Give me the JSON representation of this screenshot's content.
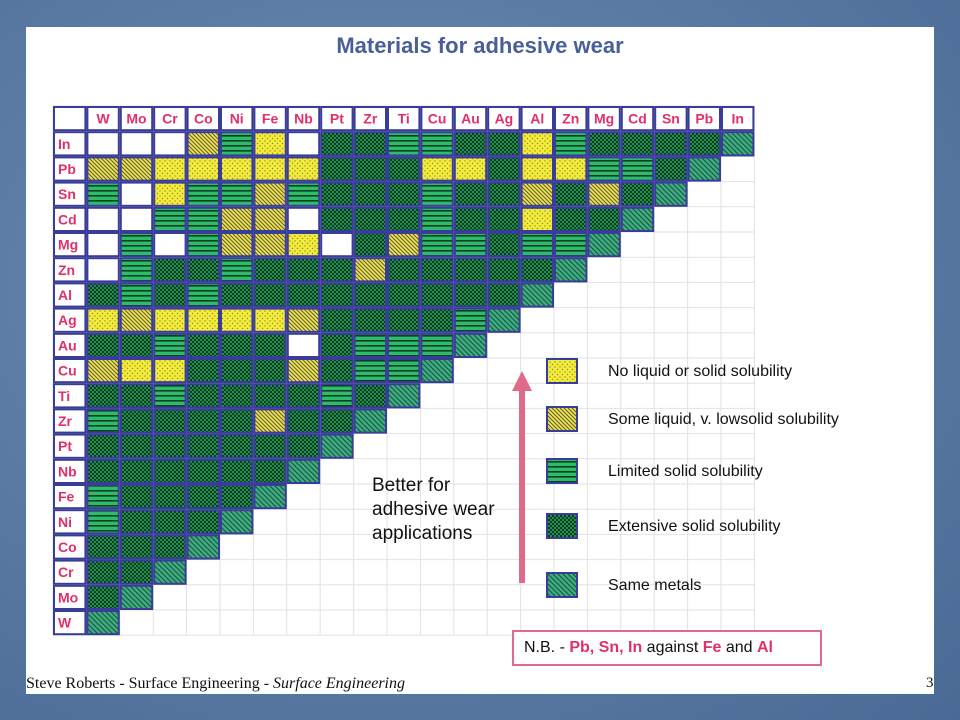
{
  "title": "Materials for adhesive wear",
  "metals": [
    "W",
    "Mo",
    "Cr",
    "Co",
    "Ni",
    "Fe",
    "Nb",
    "Pt",
    "Zr",
    "Ti",
    "Cu",
    "Au",
    "Ag",
    "Al",
    "Zn",
    "Mg",
    "Cd",
    "Sn",
    "Pb",
    "In"
  ],
  "colors": {
    "label": "#e0306a",
    "title": "#4a5f9a",
    "yellow": "#f4ec3c",
    "green": "#1fa25c",
    "dark_green": "#0f5a34",
    "teal": "#3fae82",
    "border": "#3a3c9a",
    "arrow": "#e06a8a"
  },
  "legend": [
    {
      "type": "N",
      "label": "No liquid or solid solubility"
    },
    {
      "type": "S",
      "label": "Some liquid, v. lowsolid solubility"
    },
    {
      "type": "L",
      "label": "Limited solid solubility"
    },
    {
      "type": "E",
      "label": "Extensive solid solubility"
    },
    {
      "type": "M",
      "label": "Same metals"
    }
  ],
  "chart_data": {
    "type": "heatmap",
    "codes": {
      "N": "No liquid or solid solubility",
      "S": "Some liquid, v. lowsolid solubility",
      "L": "Limited solid solubility",
      "E": "Extensive solid solubility",
      "M": "Same metals",
      "B": "blank"
    },
    "columns": [
      "W",
      "Mo",
      "Cr",
      "Co",
      "Ni",
      "Fe",
      "Nb",
      "Pt",
      "Zr",
      "Ti",
      "Cu",
      "Au",
      "Ag",
      "Al",
      "Zn",
      "Mg",
      "Cd",
      "Sn",
      "Pb",
      "In"
    ],
    "rows": [
      {
        "metal": "In",
        "cells": [
          "B",
          "B",
          "B",
          "S",
          "L",
          "N",
          "B",
          "E",
          "E",
          "L",
          "L",
          "E",
          "E",
          "N",
          "L",
          "E",
          "E",
          "E",
          "E",
          "M"
        ]
      },
      {
        "metal": "Pb",
        "cells": [
          "S",
          "S",
          "N",
          "N",
          "N",
          "N",
          "N",
          "E",
          "E",
          "E",
          "N",
          "N",
          "E",
          "N",
          "N",
          "L",
          "L",
          "E",
          "M"
        ]
      },
      {
        "metal": "Sn",
        "cells": [
          "L",
          "B",
          "N",
          "L",
          "L",
          "S",
          "L",
          "E",
          "E",
          "E",
          "L",
          "E",
          "E",
          "S",
          "E",
          "S",
          "E",
          "M"
        ]
      },
      {
        "metal": "Cd",
        "cells": [
          "B",
          "B",
          "L",
          "L",
          "S",
          "S",
          "B",
          "E",
          "E",
          "E",
          "L",
          "E",
          "E",
          "N",
          "E",
          "E",
          "M"
        ]
      },
      {
        "metal": "Mg",
        "cells": [
          "B",
          "L",
          "B",
          "L",
          "S",
          "S",
          "N",
          "B",
          "E",
          "S",
          "L",
          "L",
          "E",
          "L",
          "L",
          "M"
        ]
      },
      {
        "metal": "Zn",
        "cells": [
          "B",
          "L",
          "E",
          "E",
          "L",
          "E",
          "E",
          "E",
          "S",
          "E",
          "E",
          "E",
          "E",
          "E",
          "M"
        ]
      },
      {
        "metal": "Al",
        "cells": [
          "E",
          "L",
          "E",
          "L",
          "E",
          "E",
          "E",
          "E",
          "E",
          "E",
          "E",
          "E",
          "E",
          "M"
        ]
      },
      {
        "metal": "Ag",
        "cells": [
          "N",
          "S",
          "N",
          "N",
          "N",
          "N",
          "S",
          "E",
          "E",
          "E",
          "E",
          "L",
          "M"
        ]
      },
      {
        "metal": "Au",
        "cells": [
          "E",
          "E",
          "L",
          "E",
          "E",
          "E",
          "B",
          "E",
          "L",
          "L",
          "L",
          "M"
        ]
      },
      {
        "metal": "Cu",
        "cells": [
          "S",
          "N",
          "N",
          "E",
          "E",
          "E",
          "S",
          "E",
          "L",
          "L",
          "M"
        ]
      },
      {
        "metal": "Ti",
        "cells": [
          "E",
          "E",
          "L",
          "E",
          "E",
          "E",
          "E",
          "L",
          "E",
          "M"
        ]
      },
      {
        "metal": "Zr",
        "cells": [
          "L",
          "E",
          "E",
          "E",
          "E",
          "S",
          "E",
          "E",
          "M"
        ]
      },
      {
        "metal": "Pt",
        "cells": [
          "E",
          "E",
          "E",
          "E",
          "E",
          "E",
          "E",
          "M"
        ]
      },
      {
        "metal": "Nb",
        "cells": [
          "E",
          "E",
          "E",
          "E",
          "E",
          "E",
          "M"
        ]
      },
      {
        "metal": "Fe",
        "cells": [
          "L",
          "E",
          "E",
          "E",
          "E",
          "M"
        ]
      },
      {
        "metal": "Ni",
        "cells": [
          "L",
          "E",
          "E",
          "E",
          "M"
        ]
      },
      {
        "metal": "Co",
        "cells": [
          "E",
          "E",
          "E",
          "M"
        ]
      },
      {
        "metal": "Cr",
        "cells": [
          "E",
          "E",
          "M"
        ]
      },
      {
        "metal": "Mo",
        "cells": [
          "E",
          "M"
        ]
      },
      {
        "metal": "W",
        "cells": [
          "M"
        ]
      }
    ]
  },
  "annotation": {
    "line1": "Better for",
    "line2": "adhesive wear",
    "line3": "applications"
  },
  "note": {
    "prefix": "N.B. - ",
    "metals1": "Pb, Sn, In",
    "middle": " against ",
    "metal2": "Fe",
    "and": " and ",
    "metal3": "Al"
  },
  "footer": {
    "author": "Steve Roberts - Surface Engineering - ",
    "course": "Surface Engineering"
  },
  "page_number": "3"
}
